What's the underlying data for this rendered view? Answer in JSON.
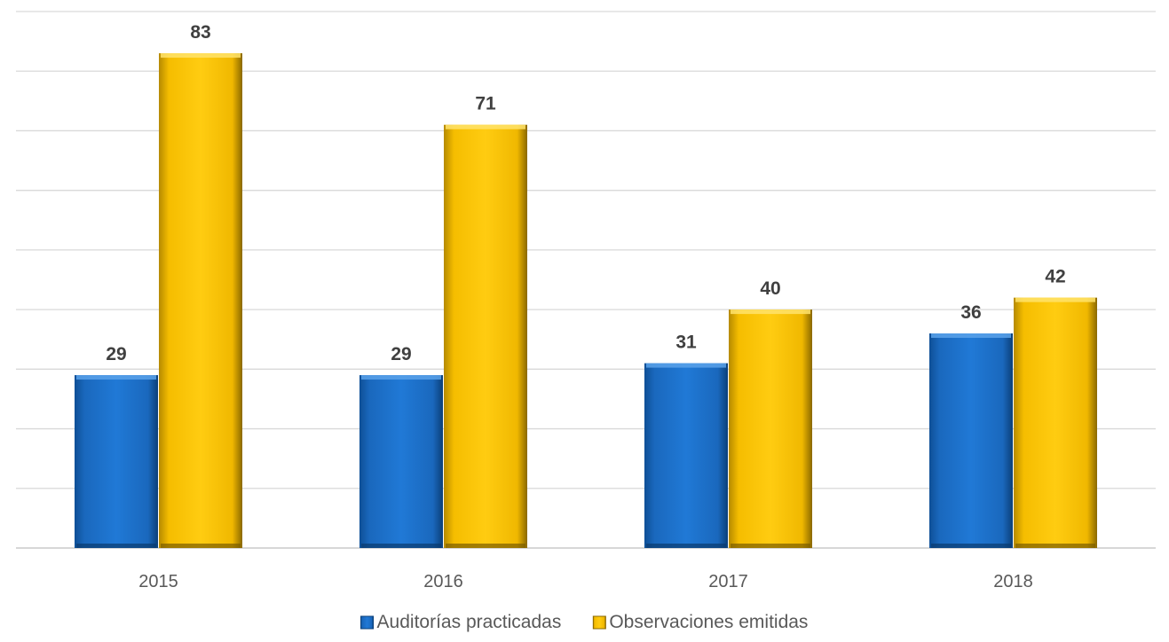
{
  "chart_data": {
    "type": "bar",
    "categories": [
      "2015",
      "2016",
      "2017",
      "2018"
    ],
    "series": [
      {
        "name": "Auditorías practicadas",
        "values": [
          29,
          29,
          31,
          36
        ],
        "color": "#1f6fc4"
      },
      {
        "name": "Observaciones emitidas",
        "values": [
          83,
          71,
          40,
          42
        ],
        "color": "#ffc000"
      }
    ],
    "title": "",
    "xlabel": "",
    "ylabel": "",
    "ylim": [
      0,
      90
    ],
    "grid": true,
    "legend_position": "bottom",
    "data_labels": true
  }
}
